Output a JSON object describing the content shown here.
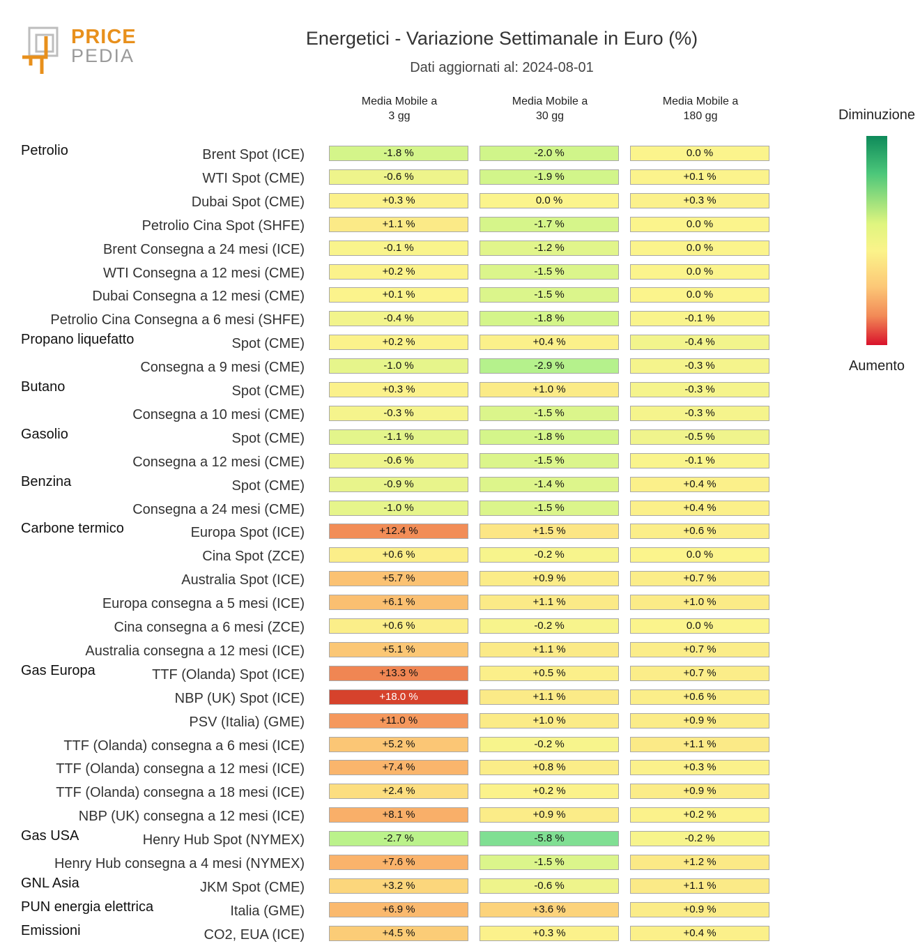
{
  "header": {
    "logo_top": "PRICE",
    "logo_bottom": "PEDIA",
    "title": "Energetici - Variazione Settimanale in Euro (%)",
    "subtitle": "Dati aggiornati al: 2024-08-01"
  },
  "legend": {
    "top_label": "Diminuzione",
    "bottom_label": "Aumento"
  },
  "colors": {
    "logo_orange": "#e8901c",
    "logo_grey": "#9a9a9a",
    "decrease_dark": "#0e8a5a",
    "neutral": "#fbf38a",
    "increase_dark": "#d9122b"
  },
  "chart_data": {
    "type": "table",
    "title": "Energetici - Variazione Settimanale in Euro (%)",
    "columns": [
      "Media Mobile a\n3 gg",
      "Media Mobile a\n30 gg",
      "Media Mobile a\n180 gg"
    ],
    "unit": "%",
    "groups": [
      {
        "name": "Petrolio",
        "rows": [
          {
            "label": "Brent Spot (ICE)",
            "values": [
              "-1.8 %",
              "-2.0 %",
              "0.0 %"
            ]
          },
          {
            "label": "WTI Spot (CME)",
            "values": [
              "-0.6 %",
              "-1.9 %",
              "+0.1 %"
            ]
          },
          {
            "label": "Dubai Spot (CME)",
            "values": [
              "+0.3 %",
              "0.0 %",
              "+0.3 %"
            ]
          },
          {
            "label": "Petrolio Cina Spot (SHFE)",
            "values": [
              "+1.1 %",
              "-1.7 %",
              "0.0 %"
            ]
          },
          {
            "label": "Brent Consegna a 24 mesi (ICE)",
            "values": [
              "-0.1 %",
              "-1.2 %",
              "0.0 %"
            ]
          },
          {
            "label": "WTI Consegna a 12 mesi (CME)",
            "values": [
              "+0.2 %",
              "-1.5 %",
              "0.0 %"
            ]
          },
          {
            "label": "Dubai Consegna a 12 mesi (CME)",
            "values": [
              "+0.1 %",
              "-1.5 %",
              "0.0 %"
            ]
          },
          {
            "label": "Petrolio Cina Consegna a 6 mesi (SHFE)",
            "values": [
              "-0.4 %",
              "-1.8 %",
              "-0.1 %"
            ]
          }
        ]
      },
      {
        "name": "Propano liquefatto",
        "rows": [
          {
            "label": "Spot (CME)",
            "values": [
              "+0.2 %",
              "+0.4 %",
              "-0.4 %"
            ]
          },
          {
            "label": "Consegna a 9 mesi (CME)",
            "values": [
              "-1.0 %",
              "-2.9 %",
              "-0.3 %"
            ]
          }
        ]
      },
      {
        "name": "Butano",
        "rows": [
          {
            "label": "Spot (CME)",
            "values": [
              "+0.3 %",
              "+1.0 %",
              "-0.3 %"
            ]
          },
          {
            "label": "Consegna a 10 mesi (CME)",
            "values": [
              "-0.3 %",
              "-1.5 %",
              "-0.3 %"
            ]
          }
        ]
      },
      {
        "name": "Gasolio",
        "rows": [
          {
            "label": "Spot (CME)",
            "values": [
              "-1.1 %",
              "-1.8 %",
              "-0.5 %"
            ]
          },
          {
            "label": "Consegna a 12 mesi (CME)",
            "values": [
              "-0.6 %",
              "-1.5 %",
              "-0.1 %"
            ]
          }
        ]
      },
      {
        "name": "Benzina",
        "rows": [
          {
            "label": "Spot (CME)",
            "values": [
              "-0.9 %",
              "-1.4 %",
              "+0.4 %"
            ]
          },
          {
            "label": "Consegna a 24 mesi (CME)",
            "values": [
              "-1.0 %",
              "-1.5 %",
              "+0.4 %"
            ]
          }
        ]
      },
      {
        "name": "Carbone termico",
        "rows": [
          {
            "label": "Europa Spot (ICE)",
            "values": [
              "+12.4 %",
              "+1.5 %",
              "+0.6 %"
            ]
          },
          {
            "label": "Cina Spot (ZCE)",
            "values": [
              "+0.6 %",
              "-0.2 %",
              "0.0 %"
            ]
          },
          {
            "label": "Australia Spot (ICE)",
            "values": [
              "+5.7 %",
              "+0.9 %",
              "+0.7 %"
            ]
          },
          {
            "label": "Europa consegna a 5 mesi (ICE)",
            "values": [
              "+6.1 %",
              "+1.1 %",
              "+1.0 %"
            ]
          },
          {
            "label": "Cina consegna a 6 mesi (ZCE)",
            "values": [
              "+0.6 %",
              "-0.2 %",
              "0.0 %"
            ]
          },
          {
            "label": "Australia consegna a 12 mesi (ICE)",
            "values": [
              "+5.1 %",
              "+1.1 %",
              "+0.7 %"
            ]
          }
        ]
      },
      {
        "name": "Gas Europa",
        "rows": [
          {
            "label": "TTF (Olanda) Spot (ICE)",
            "values": [
              "+13.3 %",
              "+0.5 %",
              "+0.7 %"
            ]
          },
          {
            "label": "NBP (UK) Spot (ICE)",
            "values": [
              "+18.0 %",
              "+1.1 %",
              "+0.6 %"
            ]
          },
          {
            "label": "PSV (Italia) (GME)",
            "values": [
              "+11.0 %",
              "+1.0 %",
              "+0.9 %"
            ]
          },
          {
            "label": "TTF (Olanda) consegna a 6 mesi (ICE)",
            "values": [
              "+5.2 %",
              "-0.2 %",
              "+1.1 %"
            ]
          },
          {
            "label": "TTF (Olanda) consegna a 12 mesi (ICE)",
            "values": [
              "+7.4 %",
              "+0.8 %",
              "+0.3 %"
            ]
          },
          {
            "label": "TTF (Olanda) consegna a 18 mesi (ICE)",
            "values": [
              "+2.4 %",
              "+0.2 %",
              "+0.9 %"
            ]
          },
          {
            "label": "NBP (UK) consegna a 12 mesi (ICE)",
            "values": [
              "+8.1 %",
              "+0.9 %",
              "+0.2 %"
            ]
          }
        ]
      },
      {
        "name": "Gas USA",
        "rows": [
          {
            "label": "Henry Hub Spot (NYMEX)",
            "values": [
              "-2.7 %",
              "-5.8 %",
              "-0.2 %"
            ]
          },
          {
            "label": "Henry Hub consegna a 4 mesi (NYMEX)",
            "values": [
              "+7.6 %",
              "-1.5 %",
              "+1.2 %"
            ]
          }
        ]
      },
      {
        "name": "GNL Asia",
        "rows": [
          {
            "label": "JKM Spot (CME)",
            "values": [
              "+3.2 %",
              "-0.6 %",
              "+1.1 %"
            ]
          }
        ]
      },
      {
        "name": "PUN energia elettrica",
        "rows": [
          {
            "label": "Italia (GME)",
            "values": [
              "+6.9 %",
              "+3.6 %",
              "+0.9 %"
            ]
          }
        ]
      },
      {
        "name": "Emissioni",
        "rows": [
          {
            "label": "CO2, EUA (ICE)",
            "values": [
              "+4.5 %",
              "+0.3 %",
              "+0.4 %"
            ]
          }
        ]
      }
    ]
  }
}
